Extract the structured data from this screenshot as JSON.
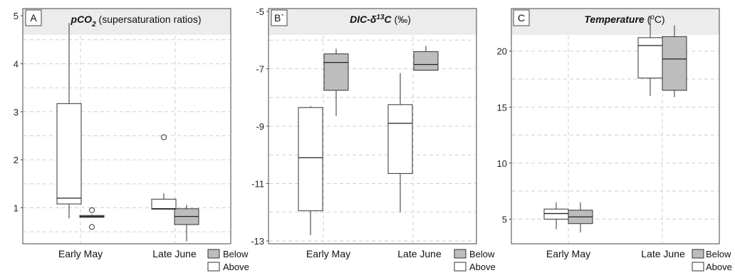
{
  "chart_data": [
    {
      "type": "box",
      "panel_label": "A",
      "title_main": "pCO",
      "title_sub": "2",
      "title_rest": " (supersaturation ratios)",
      "categories": [
        "Early May",
        "Late June"
      ],
      "ylim": [
        0.25,
        5.15
      ],
      "yticks": [
        1,
        2,
        3,
        4,
        5
      ],
      "grid": true,
      "series": [
        {
          "name": "Below",
          "color": "#bdbdbd",
          "boxes": [
            {
              "min": 0.8,
              "q1": 0.8,
              "median": 0.82,
              "q3": 0.84,
              "max": 0.86,
              "outliers": [
                0.95,
                0.6
              ]
            },
            {
              "min": 0.3,
              "q1": 0.65,
              "median": 0.82,
              "q3": 0.98,
              "max": 1.06,
              "outliers": []
            }
          ]
        },
        {
          "name": "Above",
          "color": "#ffffff",
          "boxes": [
            {
              "min": 0.78,
              "q1": 1.08,
              "median": 1.2,
              "q3": 3.17,
              "max": 4.85,
              "outliers": []
            },
            {
              "min": 0.97,
              "q1": 0.97,
              "median": 0.98,
              "q3": 1.18,
              "max": 1.3,
              "outliers": [
                2.47
              ]
            }
          ]
        }
      ]
    },
    {
      "type": "box",
      "panel_label": "B`",
      "title_main": "DIC-δ",
      "title_sup": "13",
      "title_main2": "C",
      "title_rest": " (‰)",
      "categories": [
        "Early May",
        "Late June"
      ],
      "ylim": [
        -13.1,
        -4.9
      ],
      "yticks": [
        -5,
        -7,
        -9,
        -11,
        -13
      ],
      "grid": true,
      "series": [
        {
          "name": "Below",
          "color": "#bdbdbd",
          "boxes": [
            {
              "min": -8.65,
              "q1": -7.75,
              "median": -6.78,
              "q3": -6.48,
              "max": -6.3,
              "outliers": []
            },
            {
              "min": -7.05,
              "q1": -7.05,
              "median": -6.85,
              "q3": -6.4,
              "max": -6.2,
              "outliers": []
            }
          ]
        },
        {
          "name": "Above",
          "color": "#ffffff",
          "boxes": [
            {
              "min": -12.8,
              "q1": -11.95,
              "median": -10.1,
              "q3": -8.35,
              "max": -8.3,
              "outliers": []
            },
            {
              "min": -12.0,
              "q1": -10.65,
              "median": -8.9,
              "q3": -8.25,
              "max": -7.15,
              "outliers": []
            }
          ]
        }
      ]
    },
    {
      "type": "box",
      "panel_label": "C",
      "title_main": "Temperature",
      "title_rest": " (",
      "title_sup": "o",
      "title_rest2": "C)",
      "categories": [
        "Early May",
        "Late June"
      ],
      "ylim": [
        2.8,
        23.8
      ],
      "yticks": [
        5,
        10,
        15,
        20
      ],
      "grid": true,
      "series": [
        {
          "name": "Below",
          "color": "#bdbdbd",
          "boxes": [
            {
              "min": 3.8,
              "q1": 4.6,
              "median": 5.2,
              "q3": 5.8,
              "max": 6.5,
              "outliers": []
            },
            {
              "min": 15.9,
              "q1": 16.5,
              "median": 19.3,
              "q3": 21.3,
              "max": 22.3,
              "outliers": []
            }
          ]
        },
        {
          "name": "Above",
          "color": "#ffffff",
          "boxes": [
            {
              "min": 4.1,
              "q1": 5.0,
              "median": 5.5,
              "q3": 5.9,
              "max": 6.5,
              "outliers": []
            },
            {
              "min": 16.0,
              "q1": 17.6,
              "median": 20.5,
              "q3": 21.2,
              "max": 23.1,
              "outliers": []
            }
          ]
        }
      ]
    }
  ],
  "legend": {
    "items": [
      {
        "label": "Below",
        "color": "#bdbdbd"
      },
      {
        "label": "Above",
        "color": "#ffffff"
      }
    ]
  }
}
